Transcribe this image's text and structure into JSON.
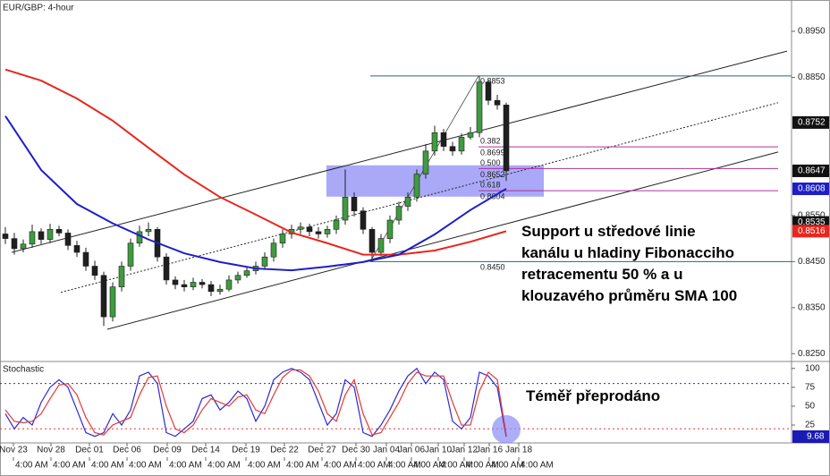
{
  "chart_data": [
    {
      "type": "candlestick",
      "title": "EUR/GBP: 4-hour",
      "xlim": [
        -0.6,
        87.9
      ],
      "ylim": [
        0.8235,
        0.9018
      ],
      "up_color": "#3f9b3f",
      "down_color": "#1f1f1f",
      "open": [
        0.851,
        0.85,
        0.8478,
        0.8488,
        0.8515,
        0.8498,
        0.852,
        0.8512,
        0.8485,
        0.847,
        0.844,
        0.842,
        0.833,
        0.8395,
        0.844,
        0.849,
        0.8515,
        0.852,
        0.846,
        0.841,
        0.84,
        0.8395,
        0.8405,
        0.84,
        0.8385,
        0.839,
        0.841,
        0.842,
        0.843,
        0.844,
        0.846,
        0.849,
        0.851,
        0.852,
        0.8525,
        0.8515,
        0.851,
        0.852,
        0.854,
        0.859,
        0.856,
        0.852,
        0.847,
        0.85,
        0.854,
        0.857,
        0.859,
        0.864,
        0.869,
        0.873,
        0.87,
        0.869,
        0.872,
        0.873,
        0.884,
        0.88,
        0.879
      ],
      "high": [
        0.8525,
        0.8512,
        0.8498,
        0.853,
        0.8522,
        0.8532,
        0.8528,
        0.852,
        0.8495,
        0.848,
        0.8452,
        0.8428,
        0.8405,
        0.845,
        0.85,
        0.8528,
        0.8535,
        0.8525,
        0.8468,
        0.8418,
        0.841,
        0.8415,
        0.8412,
        0.8408,
        0.84,
        0.842,
        0.8428,
        0.844,
        0.845,
        0.847,
        0.85,
        0.852,
        0.853,
        0.8535,
        0.8532,
        0.8525,
        0.8528,
        0.855,
        0.865,
        0.86,
        0.8568,
        0.8525,
        0.851,
        0.855,
        0.858,
        0.86,
        0.865,
        0.8705,
        0.8745,
        0.8738,
        0.871,
        0.8728,
        0.8742,
        0.8853,
        0.8845,
        0.8812,
        0.8795
      ],
      "low": [
        0.8488,
        0.8465,
        0.847,
        0.848,
        0.8488,
        0.849,
        0.8505,
        0.8475,
        0.846,
        0.843,
        0.841,
        0.831,
        0.832,
        0.8385,
        0.843,
        0.8482,
        0.8505,
        0.845,
        0.84,
        0.839,
        0.8385,
        0.8388,
        0.8392,
        0.8375,
        0.8378,
        0.8385,
        0.8402,
        0.8415,
        0.8422,
        0.8432,
        0.845,
        0.848,
        0.85,
        0.851,
        0.8505,
        0.85,
        0.8502,
        0.851,
        0.853,
        0.8548,
        0.851,
        0.845,
        0.8462,
        0.849,
        0.853,
        0.856,
        0.858,
        0.863,
        0.868,
        0.869,
        0.868,
        0.8682,
        0.8715,
        0.872,
        0.879,
        0.878,
        0.8625
      ],
      "close": [
        0.85,
        0.8478,
        0.8488,
        0.8515,
        0.8498,
        0.852,
        0.8512,
        0.8485,
        0.847,
        0.844,
        0.842,
        0.833,
        0.8395,
        0.844,
        0.849,
        0.8515,
        0.852,
        0.846,
        0.841,
        0.84,
        0.8395,
        0.8405,
        0.84,
        0.8385,
        0.839,
        0.841,
        0.842,
        0.843,
        0.844,
        0.846,
        0.849,
        0.851,
        0.852,
        0.8525,
        0.8515,
        0.851,
        0.852,
        0.854,
        0.859,
        0.856,
        0.852,
        0.847,
        0.85,
        0.854,
        0.857,
        0.859,
        0.864,
        0.869,
        0.873,
        0.87,
        0.869,
        0.872,
        0.873,
        0.884,
        0.88,
        0.879,
        0.8647
      ],
      "lines": [
        {
          "color": "#e8261e",
          "x": [
            0,
            4,
            8,
            12,
            16,
            20,
            24,
            28,
            32,
            36,
            40,
            44,
            48,
            52,
            56
          ],
          "values": [
            0.8867,
            0.8843,
            0.8804,
            0.8756,
            0.8697,
            0.8639,
            0.859,
            0.8552,
            0.8513,
            0.849,
            0.8465,
            0.8465,
            0.8474,
            0.8493,
            0.8516
          ]
        },
        {
          "color": "#1e1ec8",
          "x": [
            0,
            4,
            8,
            12,
            16,
            20,
            24,
            28,
            32,
            36,
            40,
            44,
            48,
            52,
            56
          ],
          "values": [
            0.8766,
            0.8649,
            0.8575,
            0.8533,
            0.8498,
            0.8468,
            0.8449,
            0.8435,
            0.8431,
            0.8439,
            0.8449,
            0.8465,
            0.8509,
            0.8562,
            0.8608
          ]
        }
      ],
      "trendlines": [
        {
          "x": [
            0.7,
            87.4
          ],
          "values": [
            0.847,
            0.8907
          ],
          "dashed": false
        },
        {
          "x": [
            6.2,
            86.4
          ],
          "values": [
            0.8383,
            0.8795
          ],
          "dashed": true
        },
        {
          "x": [
            11.4,
            86.4
          ],
          "values": [
            0.8303,
            0.8688
          ],
          "dashed": false
        }
      ],
      "zone": {
        "x": [
          35.9,
          60.2
        ],
        "y": [
          0.8591,
          0.8659
        ],
        "color": "#8c8cf5"
      },
      "fib_line": {
        "x": [
          40.8,
          52.9
        ],
        "values": [
          0.845,
          0.8853
        ]
      },
      "fib_levels": [
        {
          "price": 0.8853,
          "x": [
            40.8,
            87.9
          ],
          "color": "#2a6478"
        },
        {
          "ratio": 0.382,
          "price": 0.8699,
          "x": [
            52.9,
            86.4
          ],
          "color": "#b0309c"
        },
        {
          "ratio": {
            "value": 0.5,
            "label": "0.500"
          },
          "price": 0.8652,
          "x": [
            52.9,
            86.4
          ],
          "color": "#b0309c"
        },
        {
          "ratio": 0.618,
          "price": 0.8604,
          "x": [
            52.9,
            86.4
          ],
          "color": "#b0309c"
        },
        {
          "price": {
            "value": 0.845,
            "label": "0.8450"
          },
          "x": [
            40.8,
            87.9
          ],
          "color": "#2a6478"
        }
      ],
      "yticks": [
        {
          "value": 0.895,
          "label": "0.8950"
        },
        {
          "value": 0.885,
          "label": "0.8850"
        },
        {
          "value": 0.855,
          "label": "0.8550"
        },
        {
          "value": 0.845,
          "label": "0.8450"
        },
        {
          "value": 0.835,
          "label": "0.8350"
        },
        {
          "value": 0.825,
          "label": "0.8250"
        }
      ],
      "price_tags": [
        {
          "value": 0.8752,
          "color": "#111111"
        },
        {
          "value": 0.8647,
          "color": "#111111"
        },
        {
          "value": 0.8608,
          "color": "#1e1ec8"
        },
        {
          "value": 0.8535,
          "color": "#111111"
        },
        {
          "value": 0.8516,
          "color": "#e8261e"
        }
      ],
      "xticks": [
        {
          "value": 0.9,
          "label": "Nov 23"
        },
        {
          "value": 5.1,
          "label": "Nov 28"
        },
        {
          "value": 9.4,
          "label": "Dec 01"
        },
        {
          "value": 13.6,
          "label": "Dec 06"
        },
        {
          "value": 18.1,
          "label": "Dec 09"
        },
        {
          "value": 22.4,
          "label": "Dec 14"
        },
        {
          "value": 26.9,
          "label": "Dec 19"
        },
        {
          "value": 31.2,
          "label": "Dec 22"
        },
        {
          "value": 35.4,
          "label": "Dec 27"
        },
        {
          "value": 39.2,
          "label": "Dec 30"
        },
        {
          "value": 42.6,
          "label": "Jan 04"
        },
        {
          "value": 45.4,
          "label": "Jan 06"
        },
        {
          "value": 48.4,
          "label": "Jan 10"
        },
        {
          "value": 51.3,
          "label": "Jan 12"
        },
        {
          "value": 54.1,
          "label": "Jan 16"
        },
        {
          "value": 57.4,
          "label": "Jan 18"
        }
      ],
      "xtick_times": [
        "4:00 AM",
        "4:00 AM",
        "4:00 AM",
        "4:00 AM",
        "4:00 AM",
        "4:00 AM",
        "4:00 AM",
        "4:00 AM",
        "4:00 AM",
        "4:00 AM",
        "4:00 AM",
        "4:00 AM",
        "4:00 AM",
        "4:00 AM",
        "4:00 AM",
        "4:00 AM"
      ],
      "annotation": [
        "Support u středové linie",
        "kanálu u hladiny Fibonacciho",
        "retracementu 50 % a u",
        "klouzavého průměru SMA 100"
      ]
    },
    {
      "type": "line",
      "title": "Stochastic",
      "xlim": [
        -0.6,
        87.9
      ],
      "ylim": [
        -1,
        108
      ],
      "series": [
        {
          "color": "#2b2bd6",
          "values": [
            40,
            20,
            35,
            25,
            55,
            75,
            85,
            75,
            45,
            15,
            10,
            15,
            40,
            25,
            45,
            90,
            95,
            80,
            15,
            10,
            20,
            30,
            60,
            65,
            45,
            55,
            70,
            60,
            30,
            50,
            85,
            95,
            100,
            95,
            85,
            55,
            25,
            40,
            85,
            75,
            15,
            10,
            25,
            45,
            70,
            90,
            100,
            80,
            95,
            85,
            30,
            20,
            35,
            95,
            90,
            75,
            9.68
          ]
        },
        {
          "color": "#e53935",
          "values": [
            45,
            30,
            28,
            30,
            40,
            60,
            78,
            80,
            65,
            35,
            15,
            12,
            25,
            30,
            35,
            65,
            88,
            90,
            50,
            20,
            15,
            25,
            45,
            60,
            55,
            50,
            62,
            65,
            45,
            40,
            65,
            88,
            98,
            98,
            90,
            70,
            40,
            30,
            65,
            85,
            40,
            12,
            15,
            35,
            55,
            80,
            95,
            90,
            90,
            90,
            55,
            25,
            25,
            70,
            95,
            85,
            12
          ]
        }
      ],
      "levels": [
        {
          "value": 80,
          "color": "#2b2bd6"
        },
        {
          "value": 20,
          "color": "#e53935"
        }
      ],
      "yticks": [
        100,
        75,
        50,
        25
      ],
      "tag_color": "#1a1ab4",
      "highlight_color": "#8c8cf5",
      "annotation": "Téměř přeprodáno"
    }
  ]
}
